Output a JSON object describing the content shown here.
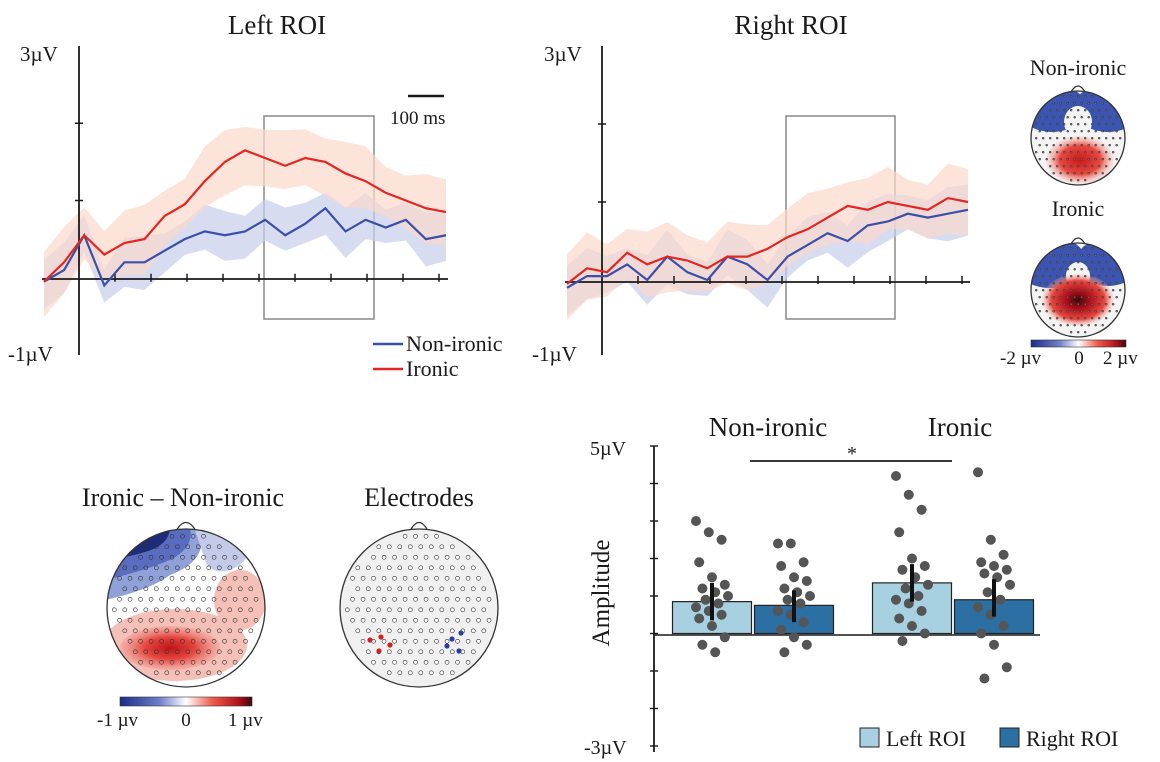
{
  "colors": {
    "non_ironic": "#3a4fa8",
    "ironic": "#e52520",
    "non_ironic_band": "#c8cdea",
    "ironic_band": "#fbd8cc",
    "left_bar": "#a7d0e0",
    "right_bar": "#2c6fa3",
    "dots": "#555555",
    "window": "#8a8a8a"
  },
  "chart_data": [
    {
      "type": "line",
      "title": "Left ROI",
      "y_unit": "µV",
      "ylim": [
        -1,
        3
      ],
      "ytick_labels": [
        "3µV",
        "-1µV"
      ],
      "scale_bar_label": "100 ms",
      "analysis_window": [
        0.5,
        0.8
      ],
      "x": [
        0.0,
        0.05,
        0.1,
        0.15,
        0.2,
        0.25,
        0.3,
        0.35,
        0.4,
        0.45,
        0.5,
        0.55,
        0.6,
        0.65,
        0.7,
        0.75,
        0.8,
        0.85,
        0.9,
        0.95,
        1.0
      ],
      "series": [
        {
          "name": "Non-ironic",
          "values": [
            -0.05,
            0.1,
            0.55,
            -0.1,
            0.2,
            0.2,
            0.35,
            0.5,
            0.6,
            0.55,
            0.6,
            0.75,
            0.55,
            0.7,
            0.9,
            0.6,
            0.75,
            0.65,
            0.75,
            0.5,
            0.55
          ]
        },
        {
          "name": "Ironic",
          "values": [
            -0.05,
            0.2,
            0.55,
            0.3,
            0.45,
            0.5,
            0.8,
            0.95,
            1.25,
            1.5,
            1.65,
            1.55,
            1.45,
            1.55,
            1.5,
            1.35,
            1.25,
            1.1,
            1.0,
            0.9,
            0.85
          ]
        }
      ]
    },
    {
      "type": "line",
      "title": "Right ROI",
      "y_unit": "µV",
      "ylim": [
        -1,
        3
      ],
      "ytick_labels": [
        "3µV",
        "-1µV"
      ],
      "analysis_window": [
        0.6,
        0.9
      ],
      "x": [
        0.0,
        0.05,
        0.1,
        0.15,
        0.2,
        0.25,
        0.3,
        0.35,
        0.4,
        0.45,
        0.5,
        0.55,
        0.6,
        0.65,
        0.7,
        0.75,
        0.8,
        0.85,
        0.9,
        0.95,
        1.0
      ],
      "series": [
        {
          "name": "Non-ironic",
          "values": [
            -0.1,
            0.05,
            0.05,
            0.2,
            0.0,
            0.3,
            0.1,
            0.0,
            0.3,
            0.2,
            0.0,
            0.3,
            0.45,
            0.6,
            0.5,
            0.7,
            0.75,
            0.85,
            0.8,
            0.85,
            0.9
          ]
        },
        {
          "name": "Ironic",
          "values": [
            -0.05,
            0.15,
            0.1,
            0.35,
            0.2,
            0.3,
            0.25,
            0.15,
            0.3,
            0.3,
            0.4,
            0.55,
            0.65,
            0.8,
            0.95,
            0.9,
            1.0,
            0.95,
            0.9,
            1.05,
            1.0
          ]
        }
      ]
    },
    {
      "type": "bar",
      "ylabel": "Amplitude",
      "ylim": [
        -3,
        5
      ],
      "ytick_labels": [
        "5µV",
        "-3µV"
      ],
      "group_labels": [
        "Non-ironic",
        "Ironic"
      ],
      "significance": "*",
      "legend": [
        "Left ROI",
        "Right ROI"
      ],
      "bars": [
        {
          "group": "Non-ironic",
          "roi": "Left ROI",
          "mean": 0.85,
          "ci": [
            0.35,
            1.35
          ],
          "points": [
            3.0,
            2.7,
            2.5,
            1.9,
            1.5,
            1.3,
            1.2,
            1.1,
            1.0,
            0.9,
            0.8,
            0.7,
            0.6,
            0.5,
            0.4,
            0.2,
            -0.1,
            -0.3,
            -0.5
          ]
        },
        {
          "group": "Non-ironic",
          "roi": "Right ROI",
          "mean": 0.75,
          "ci": [
            0.3,
            1.15
          ],
          "points": [
            2.4,
            2.4,
            1.9,
            1.8,
            1.5,
            1.4,
            1.2,
            1.1,
            1.0,
            0.9,
            0.8,
            0.6,
            0.5,
            0.3,
            0.1,
            -0.1,
            -0.3,
            -0.5
          ]
        },
        {
          "group": "Ironic",
          "roi": "Left ROI",
          "mean": 1.35,
          "ci": [
            0.85,
            1.85
          ],
          "points": [
            4.2,
            3.7,
            3.3,
            2.7,
            2.0,
            1.8,
            1.7,
            1.5,
            1.3,
            1.2,
            1.0,
            0.9,
            0.8,
            0.6,
            0.4,
            0.2,
            0.0,
            -0.2
          ]
        },
        {
          "group": "Ironic",
          "roi": "Right ROI",
          "mean": 0.9,
          "ci": [
            0.45,
            1.45
          ],
          "points": [
            4.3,
            2.5,
            2.1,
            1.9,
            1.8,
            1.7,
            1.6,
            1.5,
            1.3,
            1.1,
            0.9,
            0.7,
            0.5,
            0.2,
            0.0,
            -0.3,
            -0.9,
            -1.2
          ]
        }
      ]
    }
  ],
  "topomaps": {
    "non_ironic_label": "Non-ironic",
    "ironic_label": "Ironic",
    "colorbar_labels": [
      "-2 µv",
      "0",
      "2 µv"
    ],
    "difference_title": "Ironic – Non-ironic",
    "difference_colorbar_labels": [
      "-1 µv",
      "0",
      "1 µv"
    ],
    "electrodes_title": "Electrodes"
  }
}
